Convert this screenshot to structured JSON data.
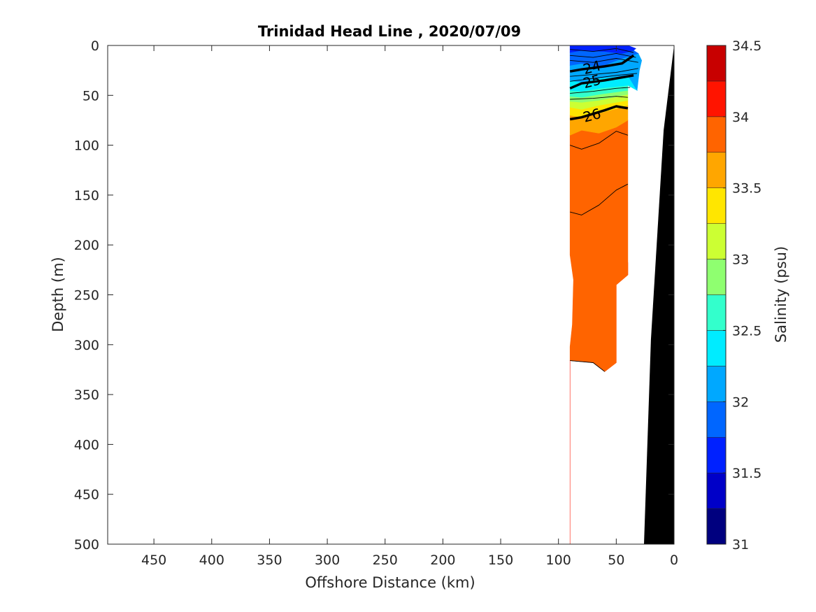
{
  "chart_data": {
    "type": "contour",
    "title": "Trinidad Head Line , 2020/07/09",
    "xlabel": "Offshore Distance (km)",
    "ylabel": "Depth (m)",
    "xlim": [
      490,
      0
    ],
    "ylim": [
      0,
      500
    ],
    "x_ticks": [
      450,
      400,
      350,
      300,
      250,
      200,
      150,
      100,
      50,
      0
    ],
    "y_ticks": [
      0,
      50,
      100,
      150,
      200,
      250,
      300,
      350,
      400,
      450,
      500
    ],
    "colorbar": {
      "label": "Salinity (psu)",
      "range": [
        31,
        34.5
      ],
      "tick_values": [
        31,
        31.5,
        32,
        32.5,
        33,
        33.5,
        34,
        34.5
      ],
      "tick_labels": [
        "31",
        "31.5",
        "32",
        "32.5",
        "33",
        "33.5",
        "34",
        "34.5"
      ],
      "levels": [
        31,
        31.25,
        31.5,
        31.75,
        32,
        32.25,
        32.5,
        32.75,
        33,
        33.25,
        33.5,
        33.75,
        34,
        34.25,
        34.5
      ],
      "colors": [
        "#00007f",
        "#0000c8",
        "#0021ff",
        "#0066ff",
        "#00a8ff",
        "#00ecff",
        "#33ffcc",
        "#8fff70",
        "#ccff33",
        "#ffe600",
        "#ffa600",
        "#ff6400",
        "#ff1400",
        "#c80000"
      ]
    },
    "contour_labels": [
      {
        "text": "24",
        "distance_km": 71,
        "depth_m": 22
      },
      {
        "text": "25",
        "distance_km": 71,
        "depth_m": 36
      },
      {
        "text": "26",
        "distance_km": 71,
        "depth_m": 70
      }
    ],
    "bathymetry": {
      "color": "#000000",
      "points": [
        [
          0,
          0
        ],
        [
          9,
          85
        ],
        [
          20,
          295
        ],
        [
          26,
          500
        ]
      ]
    },
    "salinity_regions": [
      {
        "salinity_class": 34.125,
        "color": "#ff1400",
        "polygon": [
          [
            90,
            500
          ],
          [
            90,
            316
          ],
          [
            70,
            318
          ],
          [
            60,
            327
          ],
          [
            50,
            318
          ],
          [
            50,
            240
          ],
          [
            40,
            230
          ],
          [
            40,
            218
          ],
          [
            42,
            200
          ],
          [
            52,
            198
          ],
          [
            65,
            210
          ],
          [
            68,
            240
          ],
          [
            77,
            265
          ],
          [
            83,
            310
          ],
          [
            90,
            316
          ]
        ]
      },
      {
        "salinity_class": 33.875,
        "color": "#ff6400",
        "polygon": [
          [
            90,
            302
          ],
          [
            88,
            280
          ],
          [
            87,
            235
          ],
          [
            90,
            210
          ],
          [
            90,
            90
          ],
          [
            80,
            85
          ],
          [
            65,
            88
          ],
          [
            50,
            82
          ],
          [
            40,
            75
          ],
          [
            40,
            230
          ],
          [
            50,
            240
          ],
          [
            50,
            318
          ],
          [
            60,
            327
          ],
          [
            70,
            318
          ],
          [
            90,
            316
          ]
        ]
      },
      {
        "salinity_class": 33.625,
        "color": "#ffa600",
        "polygon": [
          [
            90,
            90
          ],
          [
            90,
            70
          ],
          [
            80,
            72
          ],
          [
            65,
            68
          ],
          [
            40,
            60
          ],
          [
            40,
            75
          ],
          [
            50,
            82
          ],
          [
            65,
            88
          ],
          [
            80,
            85
          ]
        ]
      },
      {
        "salinity_class": 33.375,
        "color": "#ffe600",
        "polygon": [
          [
            90,
            70
          ],
          [
            90,
            62
          ],
          [
            80,
            64
          ],
          [
            65,
            60
          ],
          [
            40,
            55
          ],
          [
            40,
            60
          ],
          [
            65,
            68
          ],
          [
            80,
            72
          ]
        ]
      },
      {
        "salinity_class": 33.125,
        "color": "#ccff33",
        "polygon": [
          [
            90,
            62
          ],
          [
            90,
            56
          ],
          [
            80,
            57
          ],
          [
            65,
            55
          ],
          [
            40,
            49
          ],
          [
            40,
            55
          ],
          [
            65,
            60
          ],
          [
            80,
            64
          ]
        ]
      },
      {
        "salinity_class": 32.875,
        "color": "#8fff70",
        "polygon": [
          [
            90,
            56
          ],
          [
            90,
            51
          ],
          [
            80,
            52
          ],
          [
            65,
            49
          ],
          [
            40,
            45
          ],
          [
            40,
            49
          ],
          [
            65,
            55
          ],
          [
            80,
            57
          ]
        ]
      },
      {
        "salinity_class": 32.625,
        "color": "#33ffcc",
        "polygon": [
          [
            90,
            51
          ],
          [
            90,
            45
          ],
          [
            80,
            46
          ],
          [
            65,
            43
          ],
          [
            40,
            40
          ],
          [
            40,
            45
          ],
          [
            65,
            49
          ],
          [
            80,
            52
          ]
        ]
      },
      {
        "salinity_class": 32.375,
        "color": "#00ecff",
        "polygon": [
          [
            90,
            45
          ],
          [
            90,
            35
          ],
          [
            80,
            37
          ],
          [
            65,
            33
          ],
          [
            40,
            30
          ],
          [
            32,
            45
          ],
          [
            40,
            40
          ],
          [
            65,
            43
          ],
          [
            80,
            46
          ]
        ]
      },
      {
        "salinity_class": 32.125,
        "color": "#00a8ff",
        "polygon": [
          [
            90,
            35
          ],
          [
            90,
            20
          ],
          [
            80,
            18
          ],
          [
            65,
            22
          ],
          [
            45,
            13
          ],
          [
            31,
            8
          ],
          [
            28,
            15
          ],
          [
            30,
            25
          ],
          [
            32,
            45
          ],
          [
            40,
            30
          ],
          [
            65,
            33
          ],
          [
            80,
            37
          ]
        ]
      },
      {
        "salinity_class": 31.875,
        "color": "#0066ff",
        "polygon": [
          [
            90,
            20
          ],
          [
            90,
            7
          ],
          [
            80,
            5
          ],
          [
            60,
            6
          ],
          [
            45,
            8
          ],
          [
            35,
            5
          ],
          [
            31,
            8
          ],
          [
            45,
            13
          ],
          [
            65,
            22
          ],
          [
            80,
            18
          ]
        ]
      },
      {
        "salinity_class": 31.625,
        "color": "#0021ff",
        "polygon": [
          [
            90,
            7
          ],
          [
            90,
            0
          ],
          [
            40,
            0
          ],
          [
            33,
            3
          ],
          [
            35,
            5
          ],
          [
            45,
            8
          ],
          [
            60,
            6
          ],
          [
            80,
            5
          ]
        ]
      }
    ],
    "contour_lines": [
      {
        "kind": "isopycnal",
        "value": "24",
        "points": [
          [
            90,
            26
          ],
          [
            80,
            24
          ],
          [
            60,
            21
          ],
          [
            45,
            18
          ],
          [
            35,
            10
          ]
        ]
      },
      {
        "kind": "isopycnal",
        "value": "25",
        "points": [
          [
            90,
            43
          ],
          [
            80,
            38
          ],
          [
            60,
            35
          ],
          [
            45,
            32
          ],
          [
            35,
            30
          ]
        ]
      },
      {
        "kind": "isopycnal",
        "value": "26",
        "points": [
          [
            90,
            74
          ],
          [
            80,
            72
          ],
          [
            60,
            65
          ],
          [
            50,
            61
          ],
          [
            40,
            63
          ]
        ]
      },
      {
        "kind": "thin",
        "points": [
          [
            90,
            4
          ],
          [
            70,
            6
          ],
          [
            50,
            3
          ],
          [
            35,
            7
          ]
        ]
      },
      {
        "kind": "thin",
        "points": [
          [
            90,
            10
          ],
          [
            70,
            12
          ],
          [
            50,
            8
          ],
          [
            33,
            12
          ]
        ]
      },
      {
        "kind": "thin",
        "points": [
          [
            90,
            15
          ],
          [
            70,
            17
          ],
          [
            50,
            13
          ],
          [
            31,
            17
          ]
        ]
      },
      {
        "kind": "thin",
        "points": [
          [
            90,
            31
          ],
          [
            70,
            29
          ],
          [
            50,
            27
          ],
          [
            31,
            23
          ]
        ]
      },
      {
        "kind": "thin",
        "points": [
          [
            90,
            36
          ],
          [
            70,
            33
          ],
          [
            50,
            30
          ],
          [
            32,
            28
          ]
        ]
      },
      {
        "kind": "thin",
        "points": [
          [
            90,
            48
          ],
          [
            70,
            46
          ],
          [
            50,
            43
          ],
          [
            38,
            42
          ]
        ]
      },
      {
        "kind": "thin",
        "points": [
          [
            90,
            54
          ],
          [
            70,
            53
          ],
          [
            50,
            51
          ],
          [
            40,
            52
          ]
        ]
      },
      {
        "kind": "thin",
        "points": [
          [
            90,
            100
          ],
          [
            80,
            104
          ],
          [
            65,
            98
          ],
          [
            50,
            86
          ],
          [
            40,
            90
          ]
        ]
      },
      {
        "kind": "thin",
        "points": [
          [
            90,
            167
          ],
          [
            80,
            170
          ],
          [
            65,
            160
          ],
          [
            50,
            145
          ],
          [
            40,
            139
          ]
        ]
      },
      {
        "kind": "thin",
        "points": [
          [
            90,
            316
          ],
          [
            70,
            318
          ],
          [
            60,
            327
          ]
        ]
      }
    ]
  }
}
